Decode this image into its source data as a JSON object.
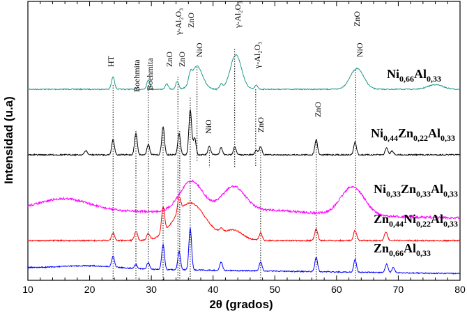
{
  "chart_data": {
    "type": "line",
    "xlabel": "2θ (grados)",
    "ylabel": "Intensidad (u.a)",
    "xlim": [
      10,
      80
    ],
    "xticks": [
      "10",
      "20",
      "30",
      "40",
      "50",
      "60",
      "70",
      "80"
    ],
    "grid": false,
    "colors": {
      "Ni066Al033": "#1f9a8a",
      "Ni044Zn022Al033": "#000000",
      "Ni033Zn033Al033": "#ff00ff",
      "Zn044Ni022Al033": "#ff0000",
      "Zn066Al033": "#0000ff"
    },
    "series": [
      {
        "key": "Ni066Al033",
        "label_parts": [
          [
            "Ni",
            ""
          ],
          [
            "0,66",
            "sub"
          ],
          [
            "Al",
            ""
          ],
          [
            "0,33",
            "sub"
          ]
        ],
        "color": "#1f9a8a",
        "baseline": 0.0,
        "peaks": [
          [
            23.8,
            1.6
          ],
          [
            29.5,
            1.2
          ],
          [
            32.5,
            0.7
          ],
          [
            34.2,
            1.0
          ],
          [
            36.3,
            1.0
          ],
          [
            37.4,
            3.0
          ],
          [
            41.3,
            0.6
          ],
          [
            43.7,
            4.5
          ],
          [
            47.0,
            0.5
          ],
          [
            63.3,
            2.7
          ],
          [
            76.0,
            0.6
          ]
        ]
      },
      {
        "key": "Ni044Zn022Al033",
        "label_parts": [
          [
            "Ni",
            ""
          ],
          [
            "0,44",
            "sub"
          ],
          [
            "Zn",
            ""
          ],
          [
            "0,22",
            "sub"
          ],
          [
            "Al",
            ""
          ],
          [
            "0,33",
            "sub"
          ]
        ],
        "color": "#000000",
        "baseline": 0.0,
        "peaks": [
          [
            19.4,
            0.6
          ],
          [
            23.8,
            2.2
          ],
          [
            27.5,
            3.1
          ],
          [
            29.5,
            1.5
          ],
          [
            31.9,
            4.0
          ],
          [
            34.5,
            3.0
          ],
          [
            36.3,
            6.5
          ],
          [
            37.0,
            2.5
          ],
          [
            39.4,
            1.2
          ],
          [
            41.3,
            1.0
          ],
          [
            43.5,
            1.2
          ],
          [
            47.0,
            0.7
          ],
          [
            47.7,
            1.2
          ],
          [
            56.7,
            2.2
          ],
          [
            63.0,
            1.8
          ],
          [
            68.1,
            1.0
          ],
          [
            69.0,
            0.6
          ]
        ]
      },
      {
        "key": "Ni033Zn033Al033",
        "label_parts": [
          [
            "Ni",
            ""
          ],
          [
            "0,33",
            "sub"
          ],
          [
            "Zn",
            ""
          ],
          [
            "0,33",
            "sub"
          ],
          [
            "Al",
            ""
          ],
          [
            "0,33",
            "sub"
          ]
        ],
        "color": "#ff00ff",
        "baseline": 0.0,
        "peaks": [
          [
            36.5,
            5.0
          ],
          [
            43.3,
            4.0
          ],
          [
            62.6,
            4.6
          ]
        ]
      },
      {
        "key": "Zn044Ni022Al033",
        "label_parts": [
          [
            "Zn",
            ""
          ],
          [
            "0,44",
            "sub"
          ],
          [
            "Ni",
            ""
          ],
          [
            "0,22",
            "sub"
          ],
          [
            "Al",
            ""
          ],
          [
            "0,33",
            "sub"
          ]
        ],
        "color": "#ff0000",
        "baseline": 0.0,
        "peaks": [
          [
            23.8,
            1.2
          ],
          [
            27.5,
            1.5
          ],
          [
            29.5,
            1.0
          ],
          [
            31.9,
            4.0
          ],
          [
            34.5,
            2.4
          ],
          [
            36.3,
            6.0
          ],
          [
            41.3,
            0.6
          ],
          [
            43.3,
            1.6
          ],
          [
            47.7,
            1.2
          ],
          [
            56.7,
            1.8
          ],
          [
            63.0,
            1.6
          ],
          [
            68.0,
            1.4
          ]
        ]
      },
      {
        "key": "Zn066Al033",
        "label_parts": [
          [
            "Zn",
            ""
          ],
          [
            "0,66",
            "sub"
          ],
          [
            "Al",
            ""
          ],
          [
            "0,33",
            "sub"
          ]
        ],
        "color": "#0000ff",
        "baseline": 0.0,
        "peaks": [
          [
            23.8,
            2.0
          ],
          [
            27.5,
            0.7
          ],
          [
            29.5,
            1.2
          ],
          [
            31.9,
            4.5
          ],
          [
            34.5,
            3.2
          ],
          [
            36.3,
            7.5
          ],
          [
            41.3,
            1.5
          ],
          [
            47.7,
            1.7
          ],
          [
            56.7,
            2.6
          ],
          [
            63.0,
            2.3
          ],
          [
            68.1,
            1.6
          ],
          [
            69.2,
            0.9
          ]
        ]
      }
    ],
    "phase_annotations": [
      {
        "text": "HT",
        "x": 23.8
      },
      {
        "text": "Boehmita",
        "x": 27.5
      },
      {
        "text": "Boehmita",
        "x": 29.5
      },
      {
        "text": "ZnO",
        "x": 31.9
      },
      {
        "text": "ZnO",
        "x": 34.5
      },
      {
        "text": "γ-Al₂O₃",
        "x": 34.3
      },
      {
        "text": "ZnO",
        "x": 36.3
      },
      {
        "text": "NiO",
        "x": 37.4
      },
      {
        "text": "NiO",
        "x": 43.5
      },
      {
        "text": "γ-Al₂O₃",
        "x": 46.8
      },
      {
        "text": "γ-Al₂O₃",
        "x": 39.4
      },
      {
        "text": "ZnO",
        "x": 47.7
      },
      {
        "text": "ZnO",
        "x": 56.7
      },
      {
        "text": "ZnO",
        "x": 63.0
      },
      {
        "text": "NiO",
        "x": 63.2
      }
    ]
  }
}
